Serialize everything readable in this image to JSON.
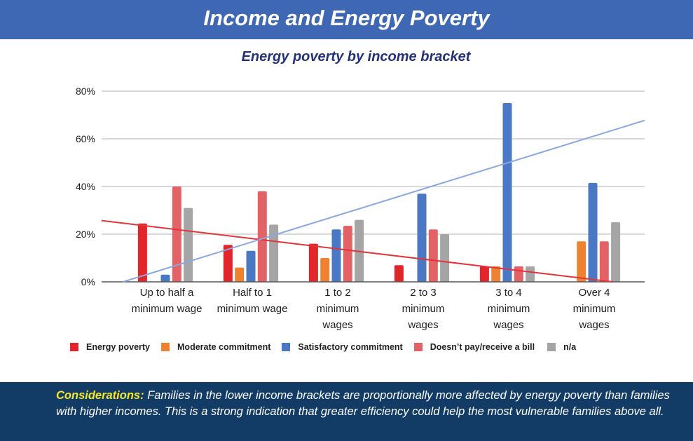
{
  "header": {
    "title": "Income and Energy Poverty"
  },
  "chart_data": {
    "type": "bar",
    "title": "Energy poverty by income bracket",
    "categories": [
      [
        "Up to half a",
        "minimum wage"
      ],
      [
        "Half to 1",
        "minimum wage"
      ],
      [
        "1 to 2",
        "minimum",
        "wages"
      ],
      [
        "2 to 3",
        "minimum",
        "wages"
      ],
      [
        "3 to 4",
        "minimum",
        "wages"
      ],
      [
        "Over 4",
        "minimum",
        "wages"
      ]
    ],
    "series": [
      {
        "name": "Energy poverty",
        "color": "#e3242b",
        "values": [
          24.5,
          15.5,
          16,
          7,
          6.5,
          0
        ]
      },
      {
        "name": "Moderate commitment",
        "color": "#ee8231",
        "values": [
          0,
          6,
          10,
          0,
          6.5,
          17
        ]
      },
      {
        "name": "Satisfactory commitment",
        "color": "#4a78c4",
        "values": [
          3,
          13,
          22,
          37,
          75,
          41.5
        ]
      },
      {
        "name": "Doesn’t pay/receive a bill",
        "color": "#e26266",
        "values": [
          40,
          38,
          23.5,
          22,
          6.5,
          17
        ]
      },
      {
        "name": "n/a",
        "color": "#a5a5a5",
        "values": [
          31,
          24,
          26,
          20,
          6.5,
          25
        ]
      }
    ],
    "trendlines": [
      {
        "series": "Energy poverty",
        "color": "#e3343b",
        "start": 22.5,
        "end": 1
      },
      {
        "series": "Satisfactory commitment",
        "color": "#8aa7df",
        "start": 5.5,
        "end": 61
      }
    ],
    "y_ticks": [
      "0%",
      "20%",
      "40%",
      "60%",
      "80%"
    ],
    "ylim": [
      0,
      80
    ],
    "grid": true,
    "legend": "bottom"
  },
  "footer": {
    "label": "Considerations:",
    "text": " Families in the lower income brackets are proportionally more affected by energy poverty than families with higher incomes. This is a strong indication that greater efficiency could help the most vulnerable families above all."
  }
}
